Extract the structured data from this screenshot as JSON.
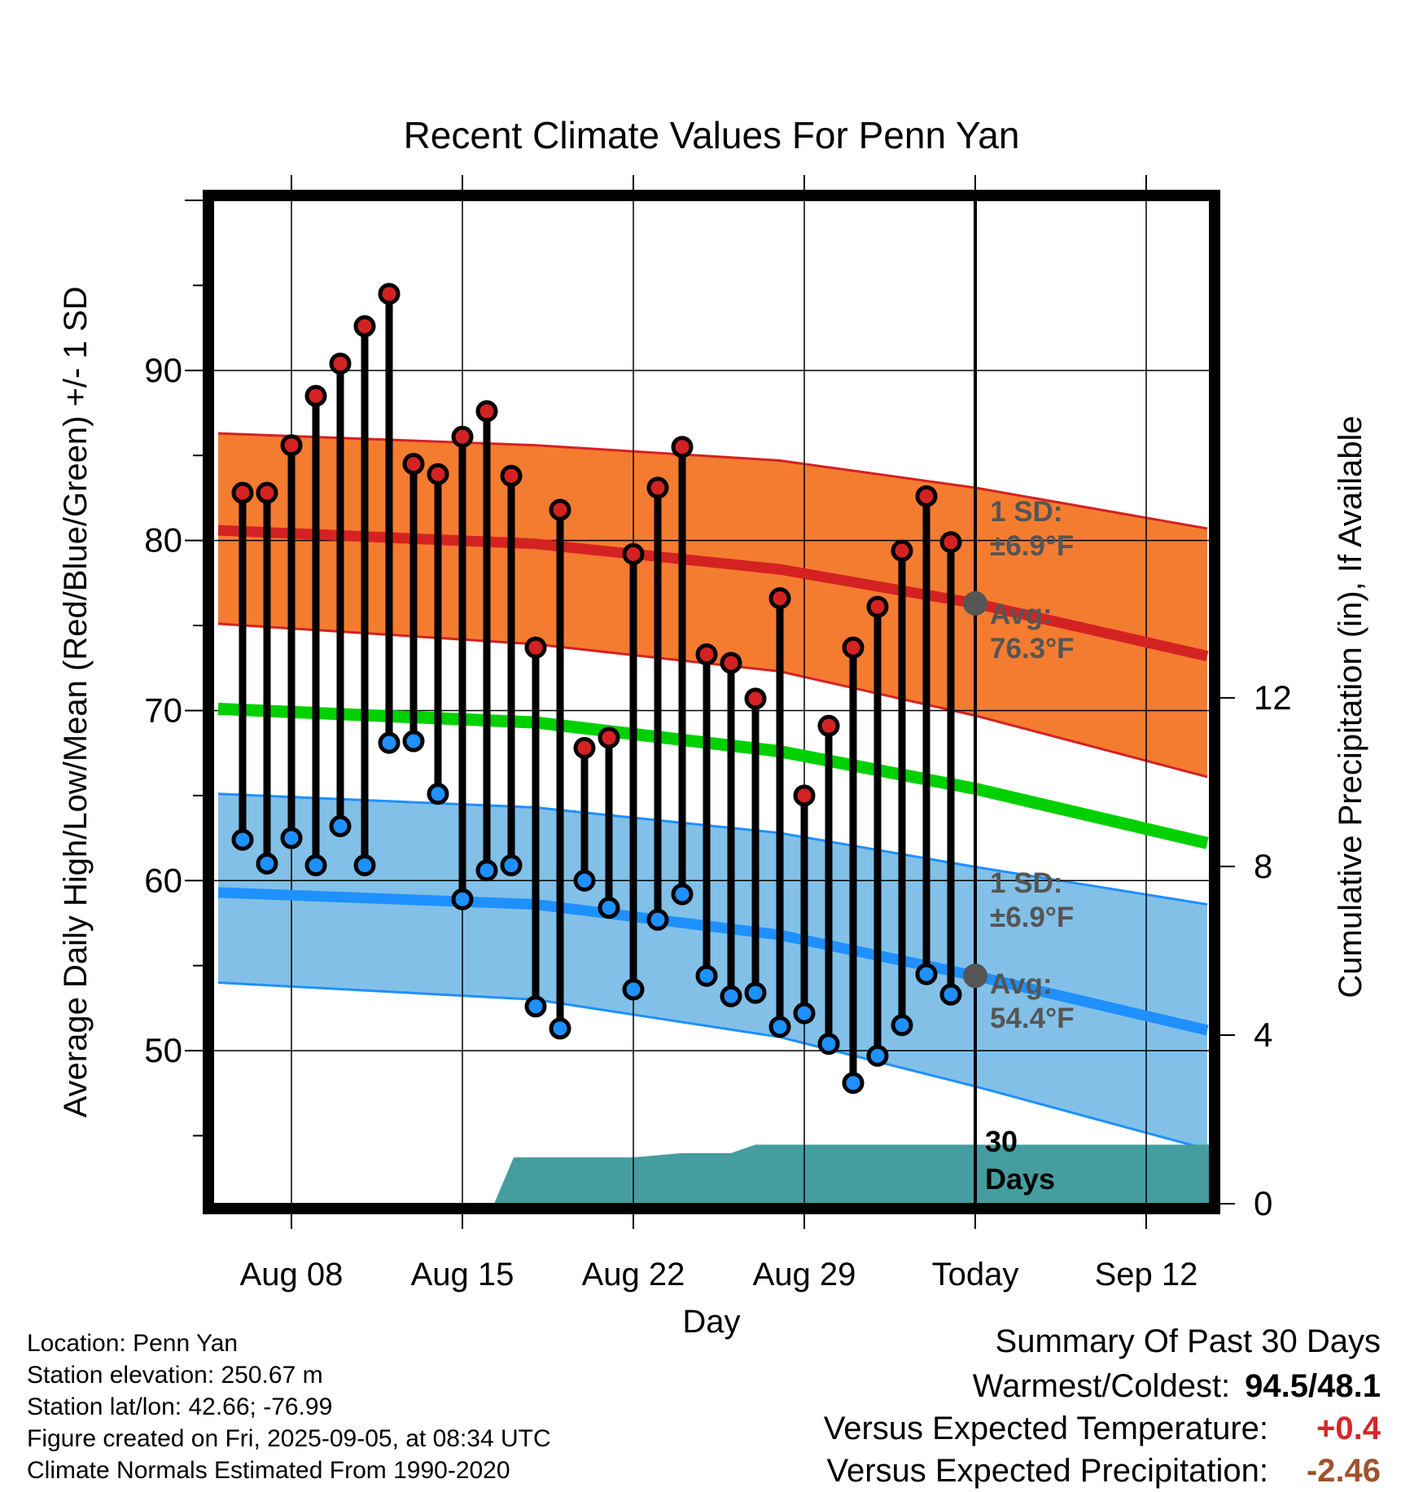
{
  "chart_data": {
    "type": "line",
    "title": "Recent Climate Values For Penn Yan",
    "xlabel": "Day",
    "ylabel": "Average Daily High/Low/Mean (Red/Blue/Green) +/- 1 SD",
    "y2label": "Cumulative Precipitation (in), If Available",
    "x_tick_labels": [
      "Aug 08",
      "Aug 15",
      "Aug 22",
      "Aug 29",
      "Today",
      "Sep 12"
    ],
    "x_tick_days": [
      0,
      7,
      14,
      21,
      28,
      35
    ],
    "xlim": [
      -3.2,
      37.6
    ],
    "ylim": [
      41,
      100
    ],
    "y_ticks": [
      50,
      60,
      70,
      80,
      90
    ],
    "y2lim": [
      0,
      23.8
    ],
    "y2_ticks": [
      0,
      4,
      8,
      12
    ],
    "grid": true,
    "today_marker_label": "30 Days",
    "normals": {
      "high_mean": {
        "x": [
          -3,
          10,
          20,
          28,
          37.5
        ],
        "y": [
          80.6,
          79.8,
          78.3,
          76.3,
          73.2
        ]
      },
      "high_plus_sd": {
        "x": [
          -3,
          10,
          20,
          28,
          37.5
        ],
        "y": [
          86.3,
          85.6,
          84.7,
          83.1,
          80.7
        ]
      },
      "high_minus_sd": {
        "x": [
          -3,
          10,
          20,
          28,
          37.5
        ],
        "y": [
          75.1,
          73.9,
          72.3,
          69.7,
          66.1
        ]
      },
      "mean": {
        "x": [
          -3,
          10,
          20,
          28,
          37.5
        ],
        "y": [
          70.1,
          69.3,
          67.6,
          65.4,
          62.2
        ]
      },
      "low_mean": {
        "x": [
          -3,
          10,
          20,
          28,
          37.5
        ],
        "y": [
          59.3,
          58.6,
          56.8,
          54.4,
          51.2
        ]
      },
      "low_plus_sd": {
        "x": [
          -3,
          10,
          20,
          28,
          37.5
        ],
        "y": [
          65.1,
          64.3,
          62.8,
          60.8,
          58.6
        ]
      },
      "low_minus_sd": {
        "x": [
          -3,
          10,
          20,
          28,
          37.5
        ],
        "y": [
          54.0,
          53.0,
          50.8,
          47.9,
          44.2
        ]
      }
    },
    "normal_labels": {
      "high_sd": "1 SD:",
      "high_sd_value": "±6.9°F",
      "high_avg": "Avg:",
      "high_avg_value": "76.3°F",
      "low_sd": "1 SD:",
      "low_sd_value": "±6.9°F",
      "low_avg": "Avg:",
      "low_avg_value": "54.4°F"
    },
    "today_normal_high": 76.3,
    "today_normal_low": 54.4,
    "daily": {
      "x": [
        -2,
        -1,
        0,
        1,
        2,
        3,
        4,
        5,
        6,
        7,
        8,
        9,
        10,
        11,
        12,
        13,
        14,
        15,
        16,
        17,
        18,
        19,
        20,
        21,
        22,
        23,
        24,
        25,
        26,
        27
      ],
      "high": [
        82.8,
        82.8,
        85.6,
        88.5,
        90.4,
        92.6,
        94.5,
        84.5,
        83.9,
        86.1,
        87.6,
        83.8,
        73.7,
        81.8,
        67.8,
        68.4,
        79.2,
        83.1,
        85.5,
        73.3,
        72.8,
        70.7,
        76.6,
        65.0,
        69.1,
        73.7,
        76.1,
        79.4,
        82.6,
        79.9
      ],
      "low": [
        62.4,
        61.0,
        62.5,
        60.9,
        63.2,
        60.9,
        68.1,
        68.2,
        65.1,
        58.9,
        60.6,
        60.9,
        52.6,
        51.3,
        60.0,
        58.4,
        53.6,
        57.7,
        59.2,
        54.4,
        53.2,
        53.4,
        51.4,
        52.2,
        50.4,
        48.1,
        49.7,
        51.5,
        54.5,
        53.3
      ]
    },
    "precip_cumulative": {
      "x": [
        -3.2,
        8.3,
        9.1,
        14,
        16,
        18,
        19,
        22,
        28,
        37.6
      ],
      "y": [
        0,
        0,
        1.1,
        1.1,
        1.2,
        1.2,
        1.4,
        1.4,
        1.4,
        1.4
      ]
    },
    "colors": {
      "high_band": "#f47c30",
      "high_line": "#d42222",
      "mean_line": "#00d000",
      "low_band": "#82c0e8",
      "low_line": "#1e90ff",
      "precip_fill": "#459da0",
      "high_dot": "#d42222",
      "low_dot": "#1e90ff",
      "marker_grey": "#555555",
      "label_grey": "#555555"
    }
  },
  "footer": {
    "location": "Location: Penn Yan",
    "elevation": "Station elevation: 250.67 m",
    "latlon": "Station lat/lon: 42.66; -76.99",
    "created": "Figure created on Fri, 2025-09-05, at 08:34 UTC",
    "normals": "Climate Normals Estimated From 1990-2020"
  },
  "summary": {
    "title": "Summary Of Past 30 Days",
    "warmest_label": "Warmest/Coldest:",
    "warmest_value": "94.5/48.1",
    "temp_label": "Versus Expected Temperature:",
    "temp_value": "+0.4",
    "precip_label": "Versus Expected Precipitation:",
    "precip_value": "-2.46"
  }
}
